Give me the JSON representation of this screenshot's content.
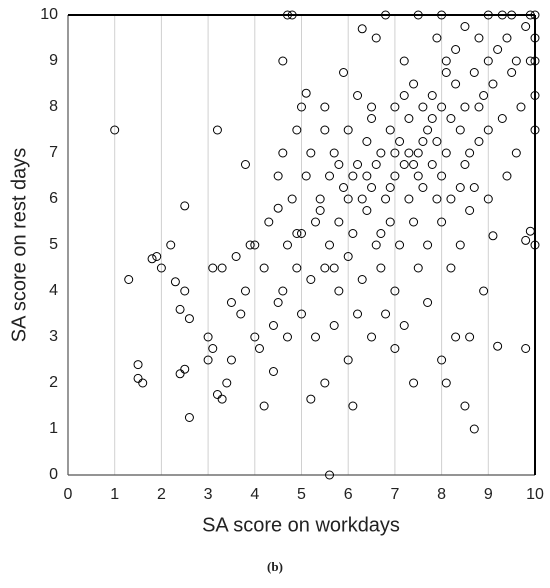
{
  "chart_data": {
    "type": "scatter",
    "x_label": "SA score on workdays",
    "y_label": "SA score on rest days",
    "caption": "(b)",
    "xlim": [
      0,
      10
    ],
    "ylim": [
      0,
      10
    ],
    "xticks": [
      0,
      1,
      2,
      3,
      4,
      5,
      6,
      7,
      8,
      9,
      10
    ],
    "yticks": [
      0,
      1,
      2,
      3,
      4,
      5,
      6,
      7,
      8,
      9,
      10
    ],
    "xgrid": true,
    "ygrid": false,
    "marker_color": "#000000",
    "x": [
      1,
      1.3,
      1.5,
      1.5,
      1.6,
      1.8,
      1.9,
      2,
      2.2,
      2.3,
      2.4,
      2.5,
      2.5,
      2.4,
      2.6,
      2.6,
      2.5,
      3,
      3,
      3.1,
      3.2,
      3.3,
      3.2,
      3.1,
      3.3,
      3.4,
      3.5,
      3.5,
      3.6,
      3.7,
      3.8,
      3.8,
      3.9,
      4,
      4,
      4.1,
      4.2,
      4.2,
      4.3,
      4.4,
      4.4,
      4.5,
      4.5,
      4.6,
      4.6,
      4.6,
      4.7,
      4.7,
      4.7,
      4.8,
      4.8,
      4.9,
      4.9,
      5,
      5,
      5,
      5.1,
      5.1,
      5.2,
      5.2,
      5.2,
      5.3,
      5.3,
      5.4,
      5.5,
      5.5,
      5.5,
      5.5,
      5.6,
      5.6,
      5.6,
      5.7,
      5.7,
      5.8,
      5.8,
      5.9,
      5.9,
      6,
      6,
      6,
      6,
      6.1,
      6.1,
      6.2,
      6.2,
      6.2,
      6.3,
      6.3,
      6.4,
      6.4,
      6.5,
      6.5,
      6.5,
      6.6,
      6.6,
      6.6,
      6.7,
      6.7,
      6.8,
      6.8,
      6.8,
      6.9,
      6.9,
      7,
      7,
      7,
      7,
      7.1,
      7.1,
      7.2,
      7.2,
      7.2,
      7.3,
      7.3,
      7.4,
      7.4,
      7.4,
      7.5,
      7.5,
      7.5,
      7.5,
      7.6,
      7.6,
      7.7,
      7.7,
      7.7,
      7.8,
      7.8,
      7.9,
      7.9,
      8,
      8,
      8,
      8,
      8,
      8.1,
      8.1,
      8.1,
      8.2,
      8.2,
      8.2,
      8.3,
      8.3,
      8.3,
      8.4,
      8.4,
      8.5,
      8.5,
      8.5,
      8.5,
      8.6,
      8.6,
      8.6,
      8.7,
      8.7,
      8.7,
      8.8,
      8.8,
      8.9,
      8.9,
      9,
      9,
      9,
      9,
      9.1,
      9.1,
      9.2,
      9.2,
      9.3,
      9.3,
      9.4,
      9.4,
      9.5,
      9.5,
      9.6,
      9.6,
      9.7,
      9.8,
      9.8,
      9.8,
      9.9,
      9.9,
      9.9,
      10,
      10,
      10,
      10,
      10,
      10,
      6.4,
      6.9,
      7.3,
      7.6,
      7.9,
      5.8,
      6.7,
      7.2,
      8.4,
      7,
      6.3,
      5.4,
      4.9,
      7.8,
      8.1,
      6.5,
      5.7,
      4.5,
      7.4,
      8.8,
      6.1
    ],
    "values": [
      7.5,
      4.25,
      2.4,
      2.1,
      2,
      4.7,
      4.75,
      4.5,
      5,
      4.2,
      3.6,
      5.85,
      2.3,
      2.2,
      1.25,
      3.4,
      4,
      3,
      2.5,
      2.75,
      1.75,
      1.65,
      7.5,
      4.5,
      4.5,
      2,
      3.75,
      2.5,
      4.75,
      3.5,
      4,
      6.75,
      5,
      3,
      5,
      2.75,
      1.5,
      4.5,
      5.5,
      2.25,
      3.25,
      5.8,
      6.5,
      4,
      7,
      9,
      3,
      5,
      10,
      10,
      6,
      4.5,
      7.5,
      8,
      3.5,
      5.25,
      6.5,
      8.3,
      4.25,
      7,
      1.65,
      5.5,
      3,
      6,
      4.5,
      7.5,
      8,
      2,
      5,
      0,
      6.5,
      3.25,
      7,
      4,
      5.5,
      6.25,
      8.75,
      2.5,
      4.75,
      6,
      7.5,
      5.25,
      1.5,
      3.5,
      6.75,
      8.25,
      4.25,
      9.7,
      5.75,
      7.25,
      6.25,
      3,
      8,
      5,
      6.75,
      9.5,
      4.5,
      7,
      10,
      6,
      3.5,
      7.5,
      5.5,
      2.75,
      6.5,
      8,
      4,
      7.25,
      5,
      6.75,
      9,
      3.25,
      7.75,
      6,
      5.5,
      8.5,
      2,
      7,
      6.5,
      4.5,
      10,
      8,
      6.25,
      7.5,
      5,
      3.75,
      6.75,
      8.25,
      7.25,
      9.5,
      8,
      6.5,
      5.5,
      2.5,
      10,
      7,
      9,
      2,
      7.75,
      6,
      4.5,
      8.5,
      3,
      9.25,
      7.5,
      5,
      6.75,
      8,
      9.75,
      1.5,
      7,
      5.75,
      3,
      8.75,
      1,
      6.25,
      9.5,
      7.25,
      4,
      8.25,
      10,
      9,
      7.5,
      6,
      5.2,
      8.5,
      9.25,
      2.8,
      7.75,
      10,
      9.5,
      6.5,
      8.75,
      10,
      9,
      7,
      8,
      9.75,
      2.75,
      5.1,
      10,
      5.3,
      9,
      10,
      9.5,
      8.25,
      7.5,
      5,
      9,
      6.5,
      6.25,
      7,
      7.25,
      6,
      6.75,
      5.25,
      8.25,
      6.25,
      7,
      6,
      5.75,
      5.25,
      7.75,
      8.75,
      7.75,
      4.5,
      3.75,
      6.75,
      8,
      6.5
    ]
  }
}
